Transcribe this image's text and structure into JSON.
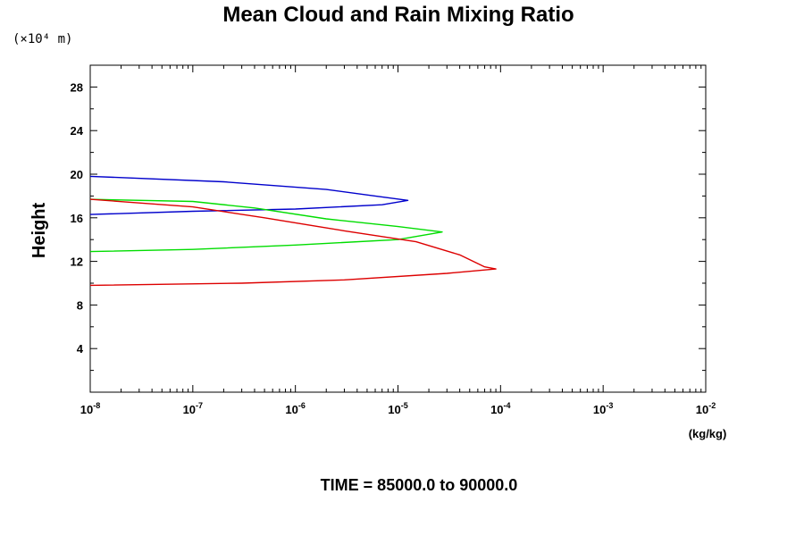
{
  "chart_data": {
    "type": "line",
    "title": "Mean Cloud and Rain Mixing Ratio",
    "y_units_label": "(×10⁴ m)",
    "ylabel": "Height",
    "xlabel": "(kg/kg)",
    "x_scale": "log",
    "xlim": [
      1e-08,
      0.01
    ],
    "ylim": [
      0,
      30
    ],
    "y_ticks": [
      4,
      8,
      12,
      16,
      20,
      24,
      28
    ],
    "x_tick_labels": [
      {
        "base": "10",
        "exp": "-8"
      },
      {
        "base": "10",
        "exp": "-7"
      },
      {
        "base": "10",
        "exp": "-6"
      },
      {
        "base": "10",
        "exp": "-5"
      },
      {
        "base": "10",
        "exp": "-4"
      },
      {
        "base": "10",
        "exp": "-3"
      },
      {
        "base": "10",
        "exp": "-2"
      }
    ],
    "series": [
      {
        "color": "#0000cc",
        "points": [
          [
            1e-08,
            19.8
          ],
          [
            2e-07,
            19.3
          ],
          [
            2e-06,
            18.6
          ],
          [
            6e-06,
            18.0
          ],
          [
            1.25e-05,
            17.6
          ],
          [
            7e-06,
            17.2
          ],
          [
            1e-06,
            16.8
          ],
          [
            1e-07,
            16.6
          ],
          [
            1e-08,
            16.3
          ]
        ]
      },
      {
        "color": "#00dd00",
        "points": [
          [
            1e-08,
            17.7
          ],
          [
            1e-07,
            17.5
          ],
          [
            4e-07,
            16.9
          ],
          [
            2e-06,
            15.9
          ],
          [
            1e-05,
            15.2
          ],
          [
            2.7e-05,
            14.7
          ],
          [
            1e-05,
            14.0
          ],
          [
            1e-06,
            13.5
          ],
          [
            1e-07,
            13.1
          ],
          [
            1e-08,
            12.9
          ]
        ]
      },
      {
        "color": "#dd0000",
        "points": [
          [
            1e-08,
            17.7
          ],
          [
            1e-07,
            17.0
          ],
          [
            5e-07,
            16.0
          ],
          [
            3e-06,
            14.8
          ],
          [
            1.5e-05,
            13.8
          ],
          [
            4e-05,
            12.6
          ],
          [
            7e-05,
            11.5
          ],
          [
            9e-05,
            11.3
          ],
          [
            3e-05,
            10.9
          ],
          [
            3e-06,
            10.3
          ],
          [
            3e-07,
            10.0
          ],
          [
            1e-08,
            9.8
          ]
        ]
      }
    ]
  },
  "footer": "TIME = 85000.0 to 90000.0"
}
